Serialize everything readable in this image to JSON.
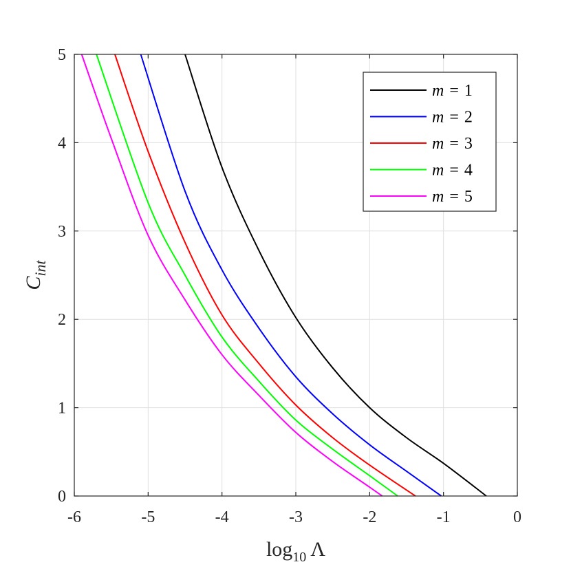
{
  "chart_data": {
    "type": "line",
    "xlabel": "log10 Λ",
    "xlabel_main": "log",
    "xlabel_sub": "10",
    "xlabel_symbol": "Λ",
    "ylabel": "C_int",
    "ylabel_main": "C",
    "ylabel_sub": "int",
    "xlim": [
      -6,
      0
    ],
    "ylim": [
      0,
      5
    ],
    "xticks": [
      "-6",
      "-5",
      "-4",
      "-3",
      "-2",
      "-1",
      "0"
    ],
    "yticks": [
      "0",
      "1",
      "2",
      "3",
      "4",
      "5"
    ],
    "grid": true,
    "legend_position": "top-right",
    "series": [
      {
        "name": "m = 1",
        "var": "m",
        "eq": "=",
        "num": "1",
        "color": "#000000",
        "x": [
          -4.5,
          -4.0,
          -3.5,
          -3.0,
          -2.5,
          -2.0,
          -1.5,
          -1.0,
          -0.42
        ],
        "y": [
          5.0,
          3.72,
          2.78,
          2.02,
          1.45,
          1.0,
          0.66,
          0.37,
          0.0
        ]
      },
      {
        "name": "m = 2",
        "var": "m",
        "eq": "=",
        "num": "2",
        "color": "#0000ff",
        "x": [
          -5.1,
          -4.5,
          -4.0,
          -3.5,
          -3.0,
          -2.5,
          -2.0,
          -1.5,
          -1.03
        ],
        "y": [
          5.0,
          3.45,
          2.56,
          1.9,
          1.35,
          0.93,
          0.58,
          0.28,
          0.0
        ]
      },
      {
        "name": "m = 3",
        "var": "m",
        "eq": "=",
        "num": "3",
        "color": "#ff0000",
        "x": [
          -5.45,
          -5.0,
          -4.5,
          -4.0,
          -3.5,
          -3.0,
          -2.5,
          -2.0,
          -1.38
        ],
        "y": [
          5.0,
          3.9,
          2.87,
          2.05,
          1.5,
          1.03,
          0.66,
          0.35,
          0.0
        ]
      },
      {
        "name": "m = 4",
        "var": "m",
        "eq": "=",
        "num": "4",
        "color": "#00ff00",
        "x": [
          -5.7,
          -5.0,
          -4.5,
          -4.0,
          -3.5,
          -3.0,
          -2.5,
          -2.0,
          -1.62
        ],
        "y": [
          5.0,
          3.32,
          2.5,
          1.8,
          1.3,
          0.86,
          0.53,
          0.23,
          0.0
        ]
      },
      {
        "name": "m = 5",
        "var": "m",
        "eq": "=",
        "num": "5",
        "color": "#ff00ff",
        "x": [
          -5.9,
          -5.5,
          -5.0,
          -4.5,
          -4.0,
          -3.5,
          -3.0,
          -2.5,
          -2.0,
          -1.83
        ],
        "y": [
          5.0,
          4.05,
          2.95,
          2.22,
          1.6,
          1.14,
          0.72,
          0.39,
          0.1,
          0.0
        ]
      }
    ]
  }
}
